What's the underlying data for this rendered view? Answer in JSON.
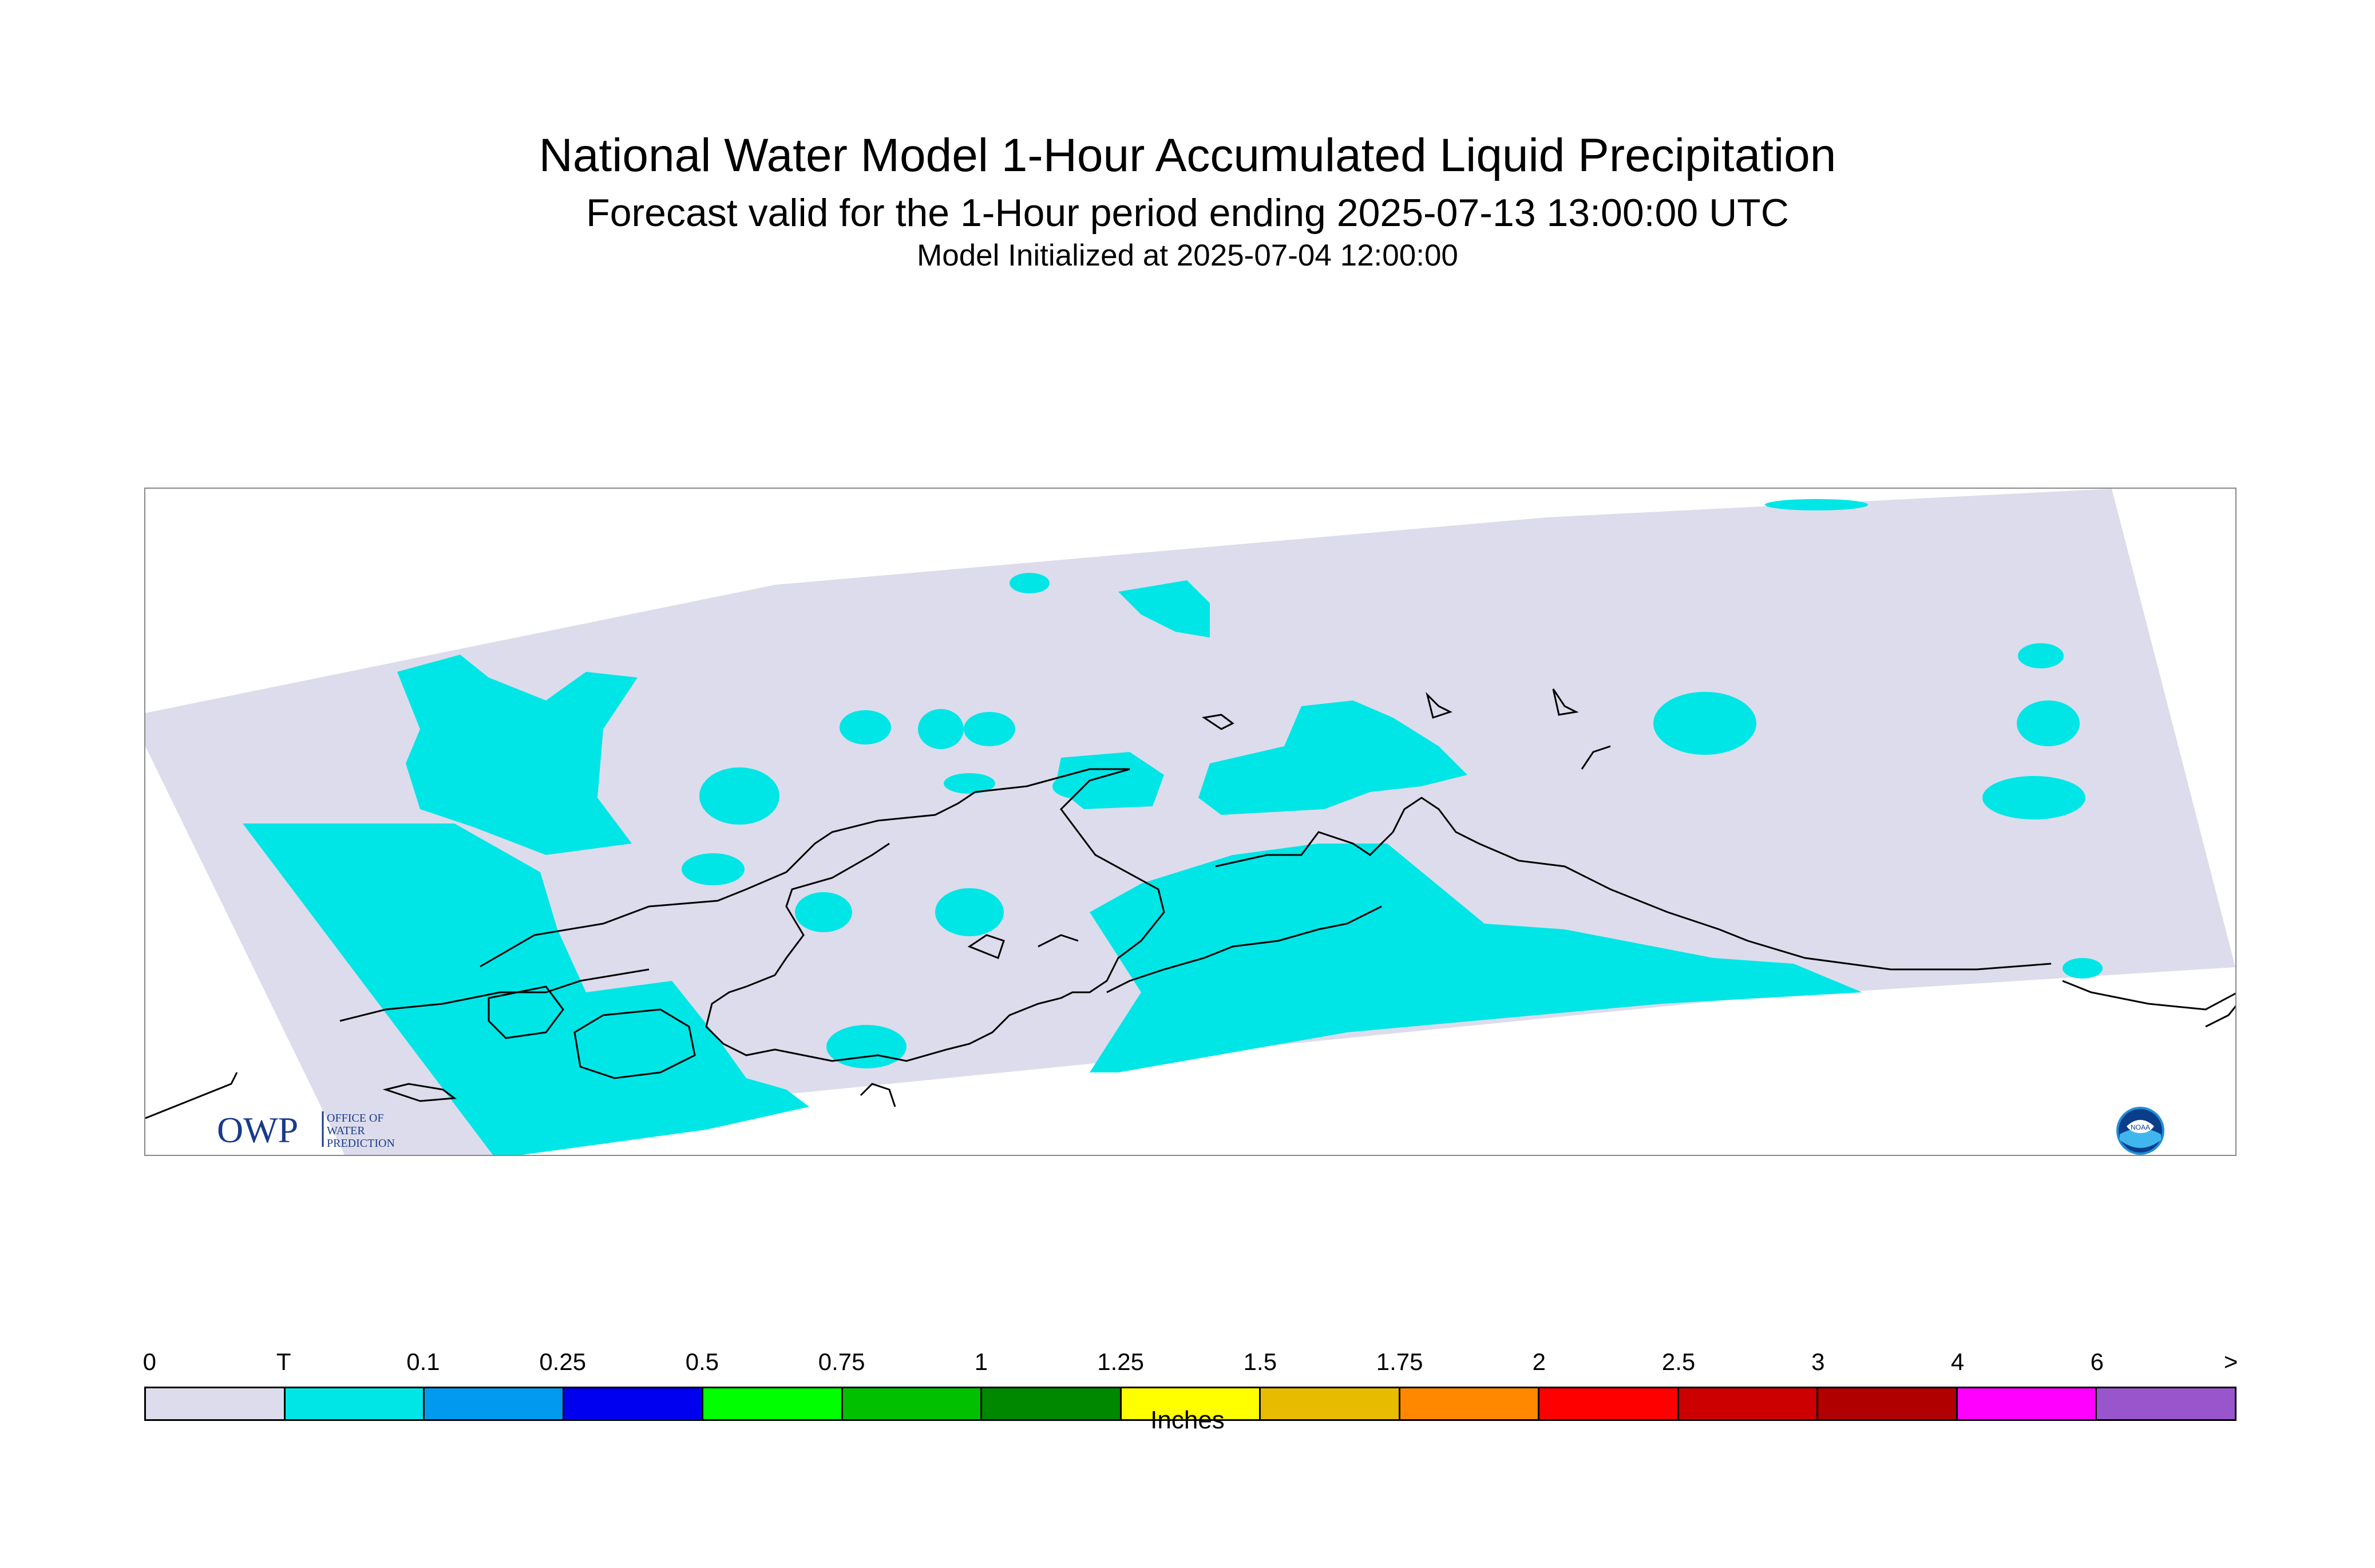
{
  "header": {
    "title": "National Water Model 1-Hour Accumulated Liquid Precipitation",
    "subtitle": "Forecast valid for the 1-Hour period ending 2025-07-13 13:00:00 UTC",
    "init_line": "Model Initialized at 2025-07-04 12:00:00"
  },
  "logos": {
    "owp_letters": "OWP",
    "owp_text": [
      "OFFICE OF",
      "WATER",
      "PREDICTION"
    ],
    "noaa_text": "NOAA"
  },
  "map": {
    "region": "Alaska",
    "background_color": "#dcdcec",
    "trace_color": "#00e6e6",
    "coastline_color": "#000000"
  },
  "legend": {
    "unit": "Inches",
    "labels": [
      "0",
      "T",
      "0.1",
      "0.25",
      "0.5",
      "0.75",
      "1",
      "1.25",
      "1.5",
      "1.75",
      "2",
      "2.5",
      "3",
      "4",
      "6",
      ">"
    ],
    "colors": [
      "#dcdcec",
      "#00e6e6",
      "#0099f0",
      "#0000f0",
      "#00ff00",
      "#00c000",
      "#008800",
      "#ffff00",
      "#e6bb00",
      "#ff8800",
      "#ff0000",
      "#cc0000",
      "#b00000",
      "#ff00ff",
      "#9955cc"
    ]
  }
}
